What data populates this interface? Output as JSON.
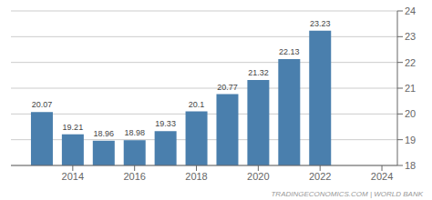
{
  "chart_data": {
    "type": "bar",
    "x": [
      2013,
      2014,
      2015,
      2016,
      2017,
      2018,
      2019,
      2020,
      2021,
      2022
    ],
    "values": [
      20.07,
      19.21,
      18.96,
      18.98,
      19.33,
      20.1,
      20.77,
      21.32,
      22.13,
      23.23
    ],
    "color": "#4a7fad",
    "xlim": [
      2012.0,
      2024.5
    ],
    "xticks": [
      2014,
      2016,
      2018,
      2020,
      2022,
      2024
    ],
    "ylim": [
      18,
      24
    ],
    "yticks": [
      18,
      19,
      20,
      21,
      22,
      23,
      24
    ],
    "grid": true,
    "data_labels": true,
    "annotations": [
      "TRADINGECONOMICS.COM | WORLD BANK"
    ]
  }
}
